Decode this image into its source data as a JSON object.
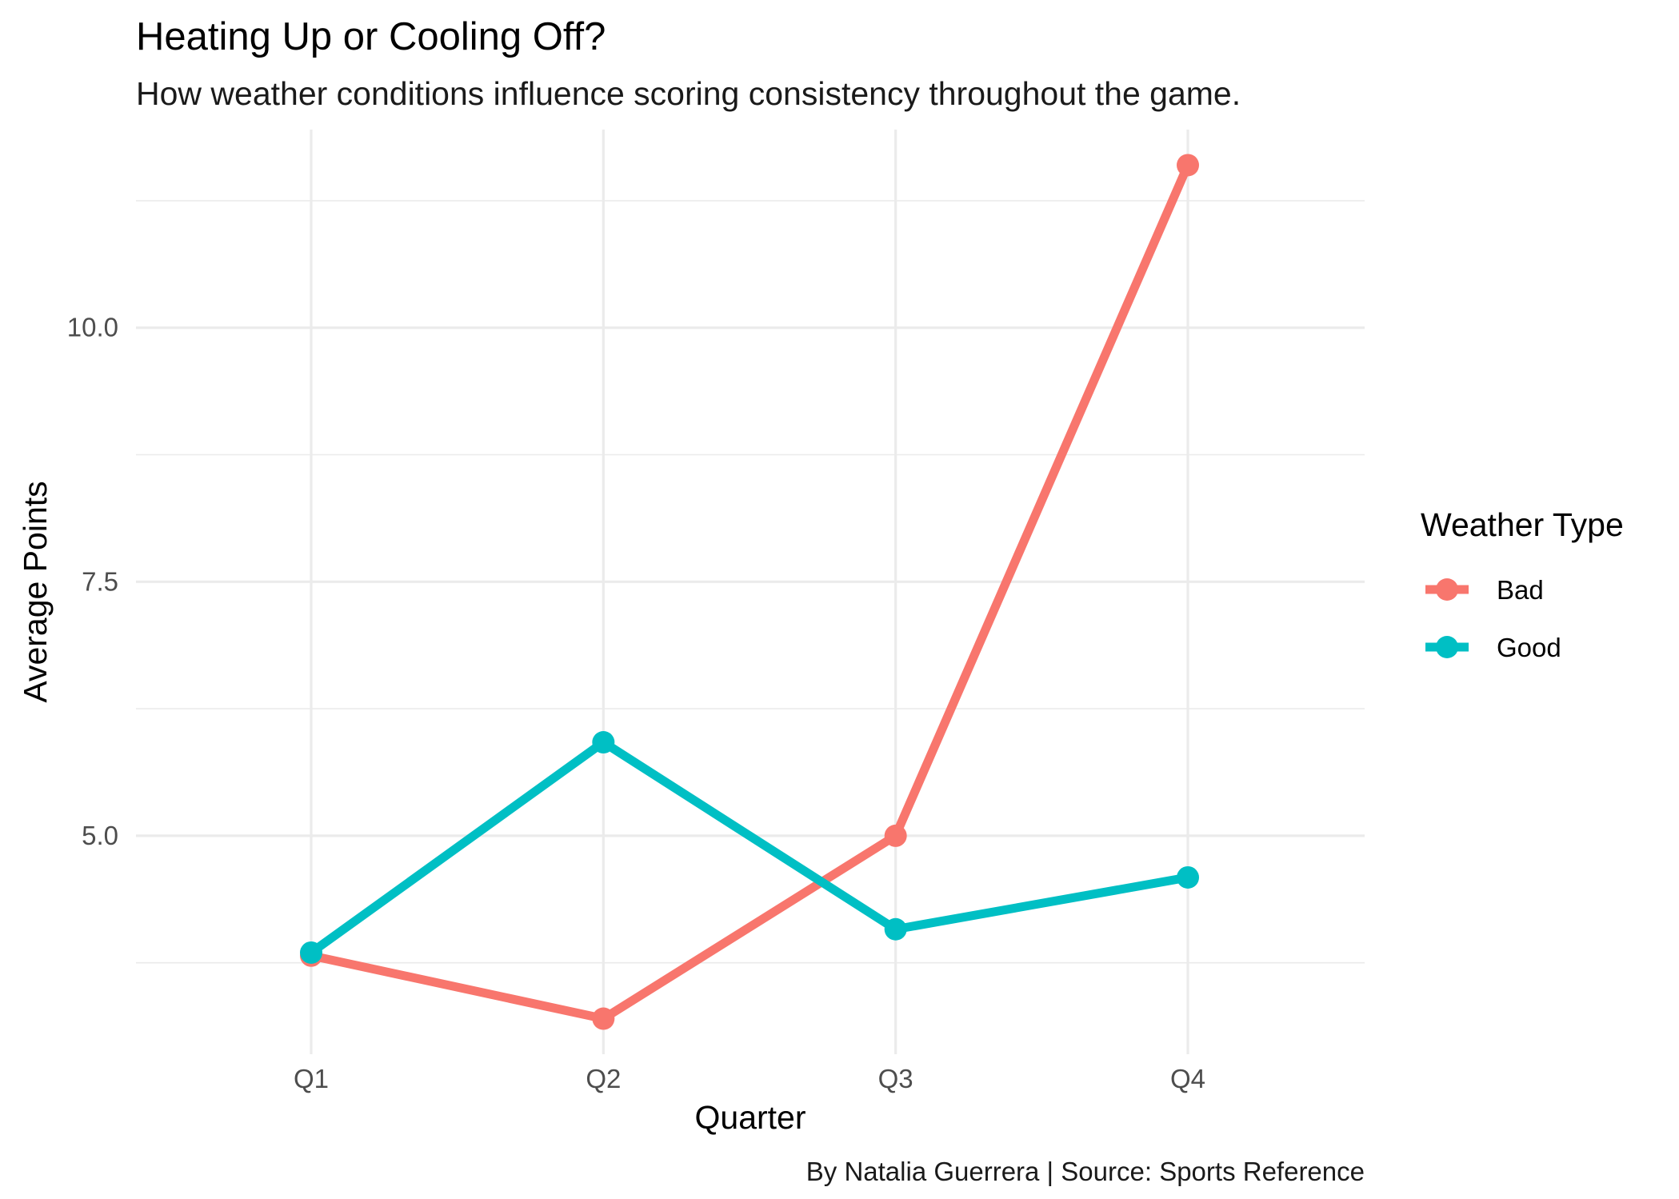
{
  "chart_data": {
    "type": "line",
    "title": "Heating Up or Cooling Off?",
    "subtitle": "How weather conditions influence scoring consistency throughout the game.",
    "caption": "By Natalia Guerrera | Source: Sports Reference",
    "xlabel": "Quarter",
    "ylabel": "Average Points",
    "categories": [
      "Q1",
      "Q2",
      "Q3",
      "Q4"
    ],
    "y_ticks": [
      5.0,
      7.5,
      10.0
    ],
    "y_tick_labels": [
      "5.0",
      "7.5",
      "10.0"
    ],
    "ylim": [
      2.85,
      11.95
    ],
    "grid": true,
    "legend": {
      "title": "Weather Type",
      "position": "right"
    },
    "series": [
      {
        "name": "Bad",
        "color": "#F8766D",
        "values": [
          3.82,
          3.2,
          5.0,
          11.6
        ]
      },
      {
        "name": "Good",
        "color": "#00BFC4",
        "values": [
          3.85,
          5.92,
          4.08,
          4.59
        ]
      }
    ]
  }
}
